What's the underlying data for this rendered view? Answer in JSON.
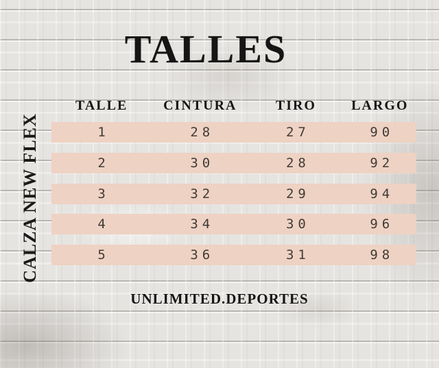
{
  "title": "TALLES",
  "side_label": "CALZA NEW FLEX",
  "footer_brand": "UNLIMITED.DEPORTES",
  "colors": {
    "row_band": "#eed2c3",
    "heading_text": "#151515",
    "value_text": "#403b37",
    "background_base": "#e6e4e1"
  },
  "chart_data": {
    "type": "table",
    "title": "TALLES",
    "columns": [
      "TALLE",
      "CINTURA",
      "TIRO",
      "LARGO"
    ],
    "rows": [
      [
        1,
        28,
        27,
        90
      ],
      [
        2,
        30,
        28,
        92
      ],
      [
        3,
        32,
        29,
        94
      ],
      [
        4,
        34,
        30,
        96
      ],
      [
        5,
        36,
        31,
        98
      ]
    ]
  }
}
